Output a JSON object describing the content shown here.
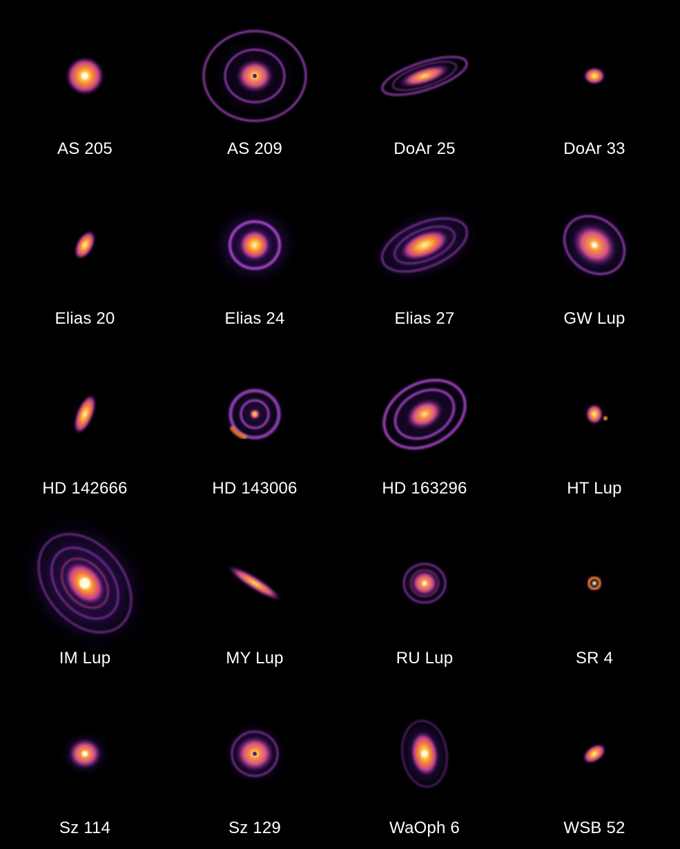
{
  "disks": [
    {
      "name": "AS 205"
    },
    {
      "name": "AS 209"
    },
    {
      "name": "DoAr 25"
    },
    {
      "name": "DoAr 33"
    },
    {
      "name": "Elias 20"
    },
    {
      "name": "Elias 24"
    },
    {
      "name": "Elias 27"
    },
    {
      "name": "GW Lup"
    },
    {
      "name": "HD 142666"
    },
    {
      "name": "HD 143006"
    },
    {
      "name": "HD 163296"
    },
    {
      "name": "HT Lup"
    },
    {
      "name": "IM Lup"
    },
    {
      "name": "MY Lup"
    },
    {
      "name": "RU Lup"
    },
    {
      "name": "SR 4"
    },
    {
      "name": "Sz 114"
    },
    {
      "name": "Sz 129"
    },
    {
      "name": "WaOph 6"
    },
    {
      "name": "WSB 52"
    }
  ],
  "colors": {
    "background": "#000000",
    "label": "#ffffff",
    "core": "#fffbe0",
    "inner": "#ffb13b",
    "mid": "#f0663a",
    "ring": "#b54ed8",
    "outer": "#6a1fa8",
    "halo": "#2a0a4a"
  }
}
